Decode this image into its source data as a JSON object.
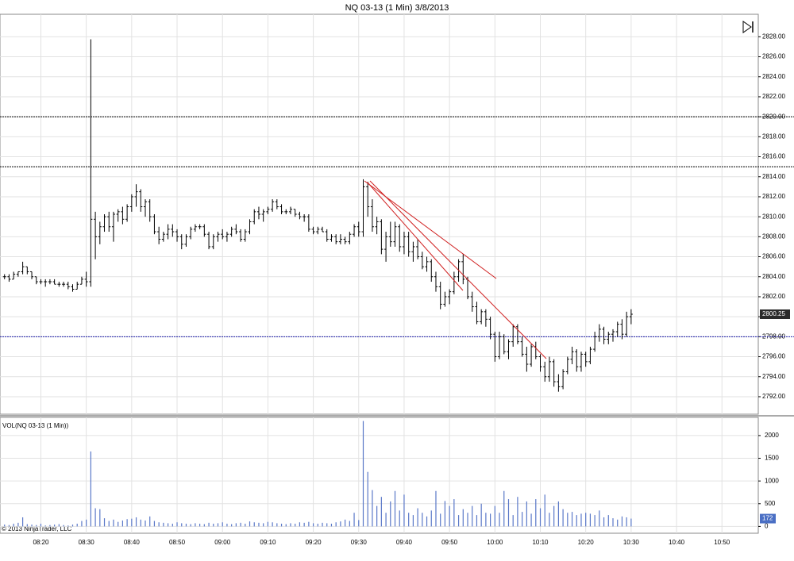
{
  "chart_data": [
    {
      "type": "ohlc",
      "title": "NQ 03-13 (1 Min)  3/8/2013",
      "color": "#000000",
      "x": [
        "08:12",
        "08:13",
        "08:14",
        "08:15",
        "08:16",
        "08:17",
        "08:18",
        "08:19",
        "08:20",
        "08:21",
        "08:22",
        "08:23",
        "08:24",
        "08:25",
        "08:26",
        "08:27",
        "08:28",
        "08:29",
        "08:30",
        "08:31",
        "08:32",
        "08:33",
        "08:34",
        "08:35",
        "08:36",
        "08:37",
        "08:38",
        "08:39",
        "08:40",
        "08:41",
        "08:42",
        "08:43",
        "08:44",
        "08:45",
        "08:46",
        "08:47",
        "08:48",
        "08:49",
        "08:50",
        "08:51",
        "08:52",
        "08:53",
        "08:54",
        "08:55",
        "08:56",
        "08:57",
        "08:58",
        "08:59",
        "09:00",
        "09:01",
        "09:02",
        "09:03",
        "09:04",
        "09:05",
        "09:06",
        "09:07",
        "09:08",
        "09:09",
        "09:10",
        "09:11",
        "09:12",
        "09:13",
        "09:14",
        "09:15",
        "09:16",
        "09:17",
        "09:18",
        "09:19",
        "09:20",
        "09:21",
        "09:22",
        "09:23",
        "09:24",
        "09:25",
        "09:26",
        "09:27",
        "09:28",
        "09:29",
        "09:30",
        "09:31",
        "09:32",
        "09:33",
        "09:34",
        "09:35",
        "09:36",
        "09:37",
        "09:38",
        "09:39",
        "09:40",
        "09:41",
        "09:42",
        "09:43",
        "09:44",
        "09:45",
        "09:46",
        "09:47",
        "09:48",
        "09:49",
        "09:50",
        "09:51",
        "09:52",
        "09:53",
        "09:54",
        "09:55",
        "09:56",
        "09:57",
        "09:58",
        "09:59",
        "10:00",
        "10:01",
        "10:02",
        "10:03",
        "10:04",
        "10:05",
        "10:06",
        "10:07",
        "10:08",
        "10:09",
        "10:10",
        "10:11",
        "10:12",
        "10:13",
        "10:14",
        "10:15",
        "10:16",
        "10:17",
        "10:18",
        "10:19",
        "10:20",
        "10:21",
        "10:22",
        "10:23",
        "10:24",
        "10:25",
        "10:26",
        "10:27",
        "10:28",
        "10:29",
        "10:30"
      ],
      "ohlc": [
        [
          2804,
          2804.25,
          2803.75,
          2804
        ],
        [
          2804,
          2804.25,
          2803.5,
          2803.75
        ],
        [
          2803.75,
          2804.5,
          2803.75,
          2804.25
        ],
        [
          2804.25,
          2804.5,
          2804,
          2804.5
        ],
        [
          2804.5,
          2805.5,
          2804.25,
          2805
        ],
        [
          2805,
          2805,
          2804.25,
          2804.5
        ],
        [
          2804.5,
          2804.5,
          2803.75,
          2804
        ],
        [
          2804,
          2804,
          2803.25,
          2803.5
        ],
        [
          2803.5,
          2803.75,
          2803.25,
          2803.5
        ],
        [
          2803.5,
          2803.75,
          2803,
          2803.5
        ],
        [
          2803.5,
          2803.75,
          2803.25,
          2803.5
        ],
        [
          2803.5,
          2803.75,
          2803.25,
          2803.25
        ],
        [
          2803.25,
          2803.5,
          2803,
          2803.25
        ],
        [
          2803.25,
          2803.5,
          2803,
          2803.25
        ],
        [
          2803.25,
          2803.5,
          2802.75,
          2803
        ],
        [
          2803,
          2803.25,
          2802.5,
          2802.75
        ],
        [
          2802.75,
          2803.5,
          2802.75,
          2803.25
        ],
        [
          2803.25,
          2804,
          2803.25,
          2803.75
        ],
        [
          2803.75,
          2804.5,
          2803,
          2803.5
        ],
        [
          2803.5,
          2827.75,
          2803,
          2809.75
        ],
        [
          2809.75,
          2810.5,
          2805.75,
          2808
        ],
        [
          2808,
          2809.5,
          2807.25,
          2809
        ],
        [
          2809,
          2810.25,
          2808.5,
          2810
        ],
        [
          2810,
          2810.5,
          2808.5,
          2809
        ],
        [
          2809,
          2810.5,
          2807.5,
          2810.25
        ],
        [
          2810.25,
          2810.75,
          2809.5,
          2810.5
        ],
        [
          2810.5,
          2811,
          2809.25,
          2809.75
        ],
        [
          2809.75,
          2811.25,
          2809.5,
          2811
        ],
        [
          2811,
          2812.25,
          2810.5,
          2812
        ],
        [
          2812,
          2813.25,
          2811,
          2812.5
        ],
        [
          2812.5,
          2812.75,
          2810.5,
          2811
        ],
        [
          2811,
          2811.75,
          2810,
          2811.5
        ],
        [
          2811.5,
          2811.75,
          2809.5,
          2810
        ],
        [
          2810,
          2810.25,
          2808.25,
          2808.5
        ],
        [
          2808.5,
          2809,
          2807.25,
          2807.75
        ],
        [
          2807.75,
          2808.5,
          2807.5,
          2808.25
        ],
        [
          2808.25,
          2809.25,
          2807.75,
          2808.75
        ],
        [
          2808.75,
          2809.25,
          2808,
          2808.5
        ],
        [
          2808.5,
          2808.75,
          2807.5,
          2808
        ],
        [
          2808,
          2808.25,
          2806.75,
          2807.25
        ],
        [
          2807.25,
          2808.25,
          2807,
          2808
        ],
        [
          2808,
          2809,
          2807.75,
          2808.75
        ],
        [
          2808.75,
          2809.25,
          2808.5,
          2809
        ],
        [
          2809,
          2809.25,
          2808.75,
          2809
        ],
        [
          2809,
          2809.25,
          2808,
          2808.25
        ],
        [
          2808.25,
          2808.5,
          2806.75,
          2807
        ],
        [
          2807,
          2808.25,
          2806.75,
          2808
        ],
        [
          2808,
          2808.5,
          2807.5,
          2808.25
        ],
        [
          2808.25,
          2808.75,
          2807.75,
          2808
        ],
        [
          2808,
          2808.5,
          2807.5,
          2808.25
        ],
        [
          2808.25,
          2809,
          2808,
          2808.75
        ],
        [
          2808.75,
          2809.25,
          2808.25,
          2808.5
        ],
        [
          2808.5,
          2808.75,
          2807.5,
          2807.75
        ],
        [
          2807.75,
          2808.75,
          2807.5,
          2808.5
        ],
        [
          2808.5,
          2809.75,
          2808.25,
          2809.5
        ],
        [
          2809.5,
          2810.75,
          2809.25,
          2810.5
        ],
        [
          2810.5,
          2811,
          2809.75,
          2810.25
        ],
        [
          2810.25,
          2810.75,
          2809.5,
          2810.5
        ],
        [
          2810.5,
          2811,
          2810.25,
          2810.75
        ],
        [
          2810.75,
          2811.75,
          2810.5,
          2811.5
        ],
        [
          2811.5,
          2811.75,
          2810.75,
          2811
        ],
        [
          2811,
          2811.25,
          2810.25,
          2810.5
        ],
        [
          2810.5,
          2810.75,
          2810.25,
          2810.5
        ],
        [
          2810.5,
          2811,
          2810.25,
          2810.75
        ],
        [
          2810.75,
          2810.75,
          2810,
          2810.25
        ],
        [
          2810.25,
          2810.5,
          2809.75,
          2810
        ],
        [
          2810,
          2810.25,
          2809.5,
          2810
        ],
        [
          2810,
          2810.25,
          2808.5,
          2808.75
        ],
        [
          2808.75,
          2809,
          2808.25,
          2808.5
        ],
        [
          2808.5,
          2809,
          2808.25,
          2808.75
        ],
        [
          2808.75,
          2809,
          2808.5,
          2808.5
        ],
        [
          2808.5,
          2808.75,
          2807.5,
          2807.75
        ],
        [
          2807.75,
          2808.25,
          2807.5,
          2808
        ],
        [
          2808,
          2808.25,
          2807.25,
          2807.5
        ],
        [
          2807.5,
          2808.25,
          2807.25,
          2807.75
        ],
        [
          2807.75,
          2808,
          2807.25,
          2807.5
        ],
        [
          2807.5,
          2808.5,
          2807.25,
          2808.25
        ],
        [
          2808.25,
          2809.25,
          2808,
          2809
        ],
        [
          2809,
          2809.5,
          2808,
          2808.5
        ],
        [
          2808.5,
          2813.75,
          2808,
          2813
        ],
        [
          2813,
          2813.5,
          2810,
          2811
        ],
        [
          2811,
          2811.75,
          2808.5,
          2809
        ],
        [
          2809,
          2810,
          2808.25,
          2809.5
        ],
        [
          2809.5,
          2809.75,
          2806.25,
          2806.75
        ],
        [
          2806.75,
          2808.5,
          2805.5,
          2808
        ],
        [
          2808,
          2809.5,
          2807,
          2807.5
        ],
        [
          2807.5,
          2809.5,
          2807,
          2809
        ],
        [
          2809,
          2809.25,
          2806.5,
          2807
        ],
        [
          2807,
          2808.5,
          2806.25,
          2808
        ],
        [
          2808,
          2808.5,
          2806,
          2806.5
        ],
        [
          2806.5,
          2807.5,
          2805.5,
          2807
        ],
        [
          2807,
          2807.75,
          2805.75,
          2806
        ],
        [
          2806,
          2806.5,
          2804.75,
          2805
        ],
        [
          2805,
          2806,
          2804.5,
          2805.5
        ],
        [
          2805.5,
          2805.75,
          2803.5,
          2804
        ],
        [
          2804,
          2804.5,
          2802.5,
          2803
        ],
        [
          2803,
          2803.5,
          2800.75,
          2801.25
        ],
        [
          2801.25,
          2802.5,
          2801,
          2802
        ],
        [
          2802,
          2802.75,
          2801.25,
          2802.5
        ],
        [
          2802.5,
          2804.5,
          2802.25,
          2804
        ],
        [
          2804,
          2805.75,
          2803.5,
          2805.5
        ],
        [
          2805.5,
          2806.25,
          2803.25,
          2803.75
        ],
        [
          2803.75,
          2804,
          2801.75,
          2802
        ],
        [
          2802,
          2802.5,
          2800.5,
          2801
        ],
        [
          2801,
          2801.5,
          2799.25,
          2799.5
        ],
        [
          2799.5,
          2800.75,
          2799.25,
          2800.5
        ],
        [
          2800.5,
          2800.75,
          2799,
          2799.75
        ],
        [
          2799.75,
          2800,
          2797.75,
          2798.25
        ],
        [
          2798.25,
          2798.5,
          2795.5,
          2796
        ],
        [
          2796,
          2798.5,
          2795.75,
          2798
        ],
        [
          2798,
          2798.25,
          2796.25,
          2796.5
        ],
        [
          2796.5,
          2797.75,
          2795.75,
          2797.5
        ],
        [
          2797.5,
          2799.25,
          2797,
          2799
        ],
        [
          2799,
          2799.25,
          2797.25,
          2797.5
        ],
        [
          2797.5,
          2798,
          2796,
          2796.25
        ],
        [
          2796.25,
          2797,
          2794.5,
          2795.25
        ],
        [
          2795.25,
          2797.25,
          2795,
          2797
        ],
        [
          2797,
          2797.5,
          2795.75,
          2796
        ],
        [
          2796,
          2796.25,
          2794.5,
          2795
        ],
        [
          2795,
          2795.5,
          2793.5,
          2794
        ],
        [
          2794,
          2796,
          2793.5,
          2795.5
        ],
        [
          2795.5,
          2795.75,
          2793,
          2793.5
        ],
        [
          2793.5,
          2794.25,
          2792.5,
          2793
        ],
        [
          2793,
          2794.75,
          2792.75,
          2794.5
        ],
        [
          2794.5,
          2796,
          2794.25,
          2795.75
        ],
        [
          2795.75,
          2797,
          2795.25,
          2796.5
        ],
        [
          2796.5,
          2796.75,
          2794.5,
          2795
        ],
        [
          2795,
          2796.5,
          2794.5,
          2796.25
        ],
        [
          2796.25,
          2796.5,
          2795,
          2795.5
        ],
        [
          2795.5,
          2797,
          2795.25,
          2796.75
        ],
        [
          2796.75,
          2798.5,
          2796.5,
          2798
        ],
        [
          2798,
          2799.25,
          2797.5,
          2798.75
        ],
        [
          2798.75,
          2799,
          2797.25,
          2797.75
        ],
        [
          2797.75,
          2798.5,
          2797.25,
          2798.25
        ],
        [
          2798.25,
          2798.75,
          2797.5,
          2798.5
        ],
        [
          2798.5,
          2799.5,
          2798,
          2799.25
        ],
        [
          2799.25,
          2799.75,
          2797.75,
          2798.25
        ],
        [
          2798.25,
          2800.5,
          2798,
          2800
        ],
        [
          2800,
          2800.75,
          2799.25,
          2800.25
        ]
      ],
      "xlim": [
        "08:11",
        "10:58"
      ],
      "xticks": [
        "08:20",
        "08:30",
        "08:40",
        "08:50",
        "09:00",
        "09:10",
        "09:20",
        "09:30",
        "09:40",
        "09:50",
        "10:00",
        "10:10",
        "10:20",
        "10:30",
        "10:40",
        "10:50"
      ],
      "ylim": [
        2790.25,
        2830.25
      ],
      "yticks": [
        {
          "value": 2792,
          "label": "2792.00"
        },
        {
          "value": 2794,
          "label": "2794.00"
        },
        {
          "value": 2796,
          "label": "2796.00"
        },
        {
          "value": 2798,
          "label": "2798.00"
        },
        {
          "value": 2800,
          "label": "2800.00"
        },
        {
          "value": 2802,
          "label": "2802.00"
        },
        {
          "value": 2804,
          "label": "2804.00"
        },
        {
          "value": 2806,
          "label": "2806.00"
        },
        {
          "value": 2808,
          "label": "2808.00"
        },
        {
          "value": 2810,
          "label": "2810.00"
        },
        {
          "value": 2812,
          "label": "2812.00"
        },
        {
          "value": 2814,
          "label": "2814.00"
        },
        {
          "value": 2816,
          "label": "2816.00"
        },
        {
          "value": 2818,
          "label": "2818.00"
        },
        {
          "value": 2820,
          "label": "2820.00"
        },
        {
          "value": 2822,
          "label": "2822.00"
        },
        {
          "value": 2824,
          "label": "2824.00"
        },
        {
          "value": 2826,
          "label": "2826.00"
        },
        {
          "value": 2828,
          "label": "2828.00"
        }
      ],
      "hlines": [
        {
          "value": 2820,
          "color": "#000000"
        },
        {
          "value": 2815,
          "color": "#000000"
        },
        {
          "value": 2798,
          "color": "#1a1aa6"
        }
      ],
      "grid": true
    },
    {
      "type": "bar",
      "title": "VOL(NQ 03-13 (1 Min))",
      "color": "#5a78c8",
      "annotations": [
        "© 2013 NinjaTrader, LLC"
      ],
      "values": [
        40,
        30,
        60,
        80,
        200,
        50,
        40,
        30,
        60,
        20,
        30,
        40,
        50,
        30,
        20,
        40,
        60,
        120,
        150,
        1650,
        400,
        380,
        180,
        120,
        150,
        100,
        130,
        160,
        170,
        200,
        150,
        130,
        220,
        120,
        90,
        80,
        70,
        60,
        90,
        70,
        60,
        50,
        70,
        60,
        50,
        80,
        60,
        70,
        90,
        60,
        50,
        70,
        80,
        60,
        110,
        90,
        80,
        70,
        100,
        90,
        70,
        60,
        50,
        70,
        60,
        90,
        80,
        100,
        70,
        60,
        80,
        70,
        60,
        90,
        110,
        150,
        120,
        300,
        140,
        2320,
        1200,
        800,
        450,
        650,
        300,
        550,
        780,
        350,
        700,
        300,
        250,
        400,
        300,
        220,
        350,
        780,
        280,
        560,
        450,
        600,
        250,
        380,
        300,
        450,
        250,
        500,
        300,
        280,
        450,
        300,
        780,
        600,
        250,
        650,
        320,
        550,
        280,
        600,
        400,
        700,
        300,
        450,
        550,
        380,
        300,
        320,
        250,
        280,
        300,
        280,
        250,
        350,
        200,
        250,
        180,
        150,
        220,
        200,
        172
      ],
      "ylim": [
        -150,
        2400
      ],
      "yticks": [
        0,
        500,
        1000,
        1500,
        2000
      ],
      "grid": true
    }
  ]
}
